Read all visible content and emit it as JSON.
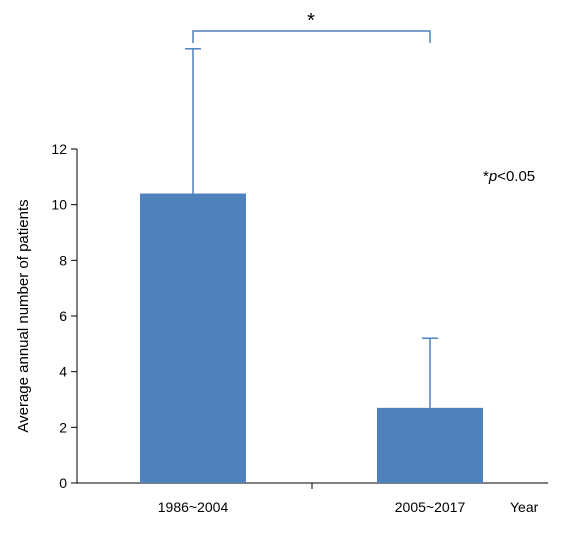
{
  "chart_data": {
    "type": "bar",
    "categories": [
      "1986~2004",
      "2005~2017"
    ],
    "values": [
      10.4,
      2.7
    ],
    "error_upper": [
      15.6,
      5.2
    ],
    "ylabel": "Average annual number of patients",
    "xlabel": "Year",
    "ylim": [
      0,
      12
    ],
    "yticks": [
      "0",
      "2",
      "4",
      "6",
      "8",
      "10",
      "12"
    ],
    "grid": false,
    "bar_color": "#4f81bd",
    "significance": {
      "marker": "*",
      "note_prefix": "*",
      "note_italic": "p",
      "note_suffix": "<0.05"
    }
  }
}
